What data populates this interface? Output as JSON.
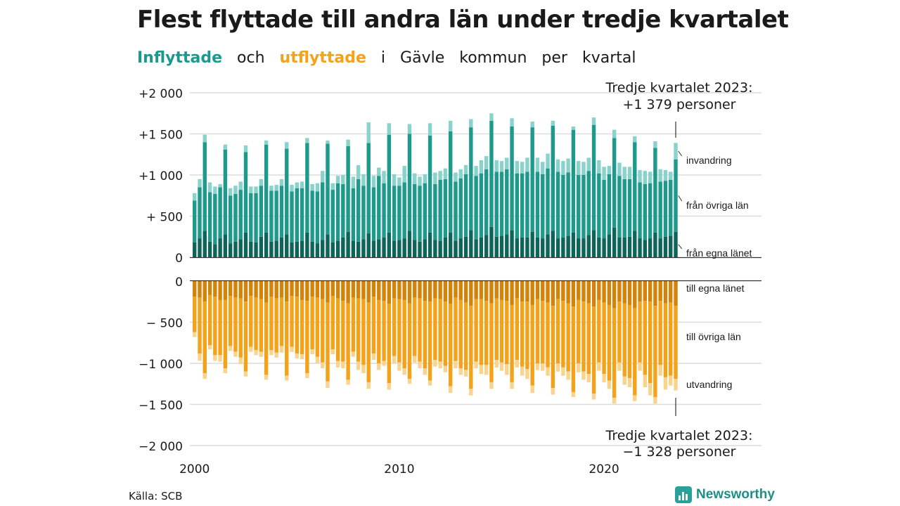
{
  "title": "Flest flyttade till andra län under tredje kvartalet",
  "subtitle": {
    "inflow": "Inflyttade",
    "and": "och",
    "outflow": "utflyttade",
    "in": "i",
    "place": "Gävle",
    "word_kommun": "kommun",
    "word_per": "per",
    "word_kvartal": "kvartal"
  },
  "source": "Källa: SCB",
  "brand": "Newsworthy",
  "chart_data": {
    "type": "bar",
    "stacked": true,
    "start_year": 2000,
    "quarters_per_year": 4,
    "periods": 95,
    "y_top": {
      "ylim": [
        0,
        2000
      ],
      "ticks": [
        0,
        500,
        1000,
        1500,
        2000
      ],
      "tick_labels": [
        "0",
        "+  500",
        "+1 000",
        "+1 500",
        "+2 000"
      ]
    },
    "y_bottom": {
      "ylim": [
        -2000,
        0
      ],
      "ticks": [
        0,
        -500,
        -1000,
        -1500,
        -2000
      ],
      "tick_labels": [
        "0",
        "−  500",
        "−1 000",
        "−1 500",
        "−2 000"
      ]
    },
    "x_ticks": [
      "2000",
      "2010",
      "2020"
    ],
    "inflow_series": [
      {
        "name": "från egna länet",
        "color": "#0f645a",
        "values": [
          180,
          230,
          320,
          190,
          160,
          230,
          280,
          170,
          190,
          220,
          300,
          190,
          180,
          250,
          300,
          190,
          200,
          240,
          280,
          180,
          190,
          200,
          300,
          190,
          170,
          210,
          280,
          180,
          200,
          240,
          310,
          200,
          190,
          220,
          290,
          200,
          220,
          240,
          300,
          200,
          210,
          230,
          320,
          210,
          190,
          220,
          300,
          210,
          200,
          240,
          300,
          200,
          230,
          250,
          330,
          220,
          240,
          270,
          370,
          250,
          260,
          280,
          330,
          230,
          240,
          240,
          310,
          240,
          230,
          280,
          320,
          230,
          240,
          260,
          300,
          230,
          230,
          270,
          330,
          240,
          230,
          280,
          360,
          240,
          240,
          250,
          320,
          230,
          210,
          230,
          300,
          230,
          250,
          260,
          310
        ]
      },
      {
        "name": "från övriga län",
        "color": "#1e9a8c",
        "values": [
          510,
          620,
          1080,
          600,
          610,
          620,
          1030,
          580,
          580,
          600,
          980,
          590,
          600,
          620,
          1070,
          620,
          610,
          630,
          1040,
          620,
          650,
          640,
          1090,
          620,
          630,
          700,
          1100,
          640,
          700,
          650,
          1040,
          640,
          760,
          650,
          1100,
          650,
          770,
          660,
          1190,
          670,
          660,
          680,
          1180,
          680,
          680,
          680,
          1180,
          680,
          740,
          710,
          1230,
          720,
          730,
          760,
          1250,
          770,
          780,
          800,
          1290,
          790,
          780,
          790,
          1260,
          790,
          780,
          800,
          1270,
          800,
          780,
          800,
          1280,
          810,
          760,
          770,
          1250,
          770,
          770,
          780,
          1280,
          780,
          710,
          730,
          1090,
          750,
          710,
          700,
          1080,
          680,
          680,
          670,
          1030,
          690,
          680,
          680,
          880
        ]
      },
      {
        "name": "invandring",
        "color": "#8ad3cc",
        "values": [
          90,
          100,
          90,
          120,
          90,
          40,
          60,
          90,
          100,
          100,
          80,
          80,
          80,
          80,
          50,
          60,
          70,
          80,
          80,
          80,
          70,
          80,
          60,
          80,
          100,
          140,
          40,
          80,
          90,
          110,
          80,
          140,
          170,
          140,
          250,
          140,
          100,
          150,
          140,
          140,
          100,
          200,
          120,
          130,
          110,
          110,
          150,
          140,
          110,
          130,
          130,
          110,
          110,
          110,
          100,
          120,
          160,
          160,
          90,
          140,
          130,
          140,
          100,
          150,
          140,
          170,
          70,
          170,
          150,
          180,
          60,
          150,
          170,
          170,
          40,
          170,
          160,
          160,
          90,
          160,
          160,
          100,
          100,
          160,
          150,
          150,
          70,
          150,
          160,
          140,
          80,
          150,
          130,
          100,
          200
        ]
      }
    ],
    "outflow_series": [
      {
        "name": "till egna länet",
        "color": "#d4830a",
        "values": [
          190,
          200,
          250,
          170,
          190,
          230,
          230,
          180,
          200,
          210,
          250,
          180,
          200,
          220,
          260,
          190,
          210,
          200,
          250,
          180,
          190,
          230,
          240,
          190,
          200,
          220,
          260,
          180,
          210,
          240,
          270,
          200,
          210,
          220,
          260,
          190,
          230,
          240,
          280,
          210,
          220,
          230,
          270,
          200,
          210,
          240,
          250,
          210,
          220,
          250,
          280,
          200,
          230,
          260,
          300,
          220,
          220,
          240,
          270,
          210,
          230,
          240,
          290,
          210,
          250,
          250,
          290,
          220,
          240,
          260,
          300,
          220,
          240,
          270,
          310,
          230,
          250,
          270,
          310,
          230,
          260,
          290,
          330,
          250,
          270,
          290,
          330,
          250,
          240,
          250,
          300,
          240,
          270,
          260,
          300
        ]
      },
      {
        "name": "till övriga län",
        "color": "#f5a21b",
        "values": [
          430,
          680,
          870,
          610,
          710,
          670,
          830,
          610,
          660,
          720,
          850,
          620,
          640,
          640,
          880,
          650,
          660,
          590,
          900,
          620,
          690,
          660,
          880,
          640,
          720,
          770,
          960,
          650,
          760,
          740,
          930,
          660,
          770,
          800,
          970,
          690,
          770,
          730,
          960,
          700,
          770,
          830,
          920,
          710,
          770,
          820,
          960,
          750,
          760,
          780,
          1000,
          770,
          830,
          820,
          1010,
          760,
          800,
          780,
          960,
          750,
          760,
          770,
          940,
          750,
          790,
          820,
          980,
          780,
          760,
          790,
          1000,
          780,
          810,
          830,
          1040,
          770,
          850,
          860,
          1060,
          760,
          870,
          920,
          1090,
          740,
          890,
          890,
          1060,
          740,
          900,
          990,
          1110,
          780,
          900,
          890,
          890
        ]
      },
      {
        "name": "utvandring",
        "color": "#f8d48e",
        "values": [
          60,
          90,
          70,
          50,
          70,
          80,
          60,
          60,
          60,
          80,
          60,
          60,
          60,
          60,
          60,
          60,
          60,
          80,
          60,
          60,
          60,
          60,
          60,
          60,
          80,
          70,
          80,
          60,
          80,
          80,
          60,
          60,
          100,
          100,
          80,
          80,
          80,
          60,
          80,
          90,
          100,
          80,
          60,
          80,
          80,
          80,
          60,
          80,
          80,
          80,
          80,
          90,
          80,
          80,
          80,
          80,
          110,
          120,
          80,
          90,
          100,
          130,
          80,
          90,
          110,
          120,
          90,
          80,
          90,
          100,
          80,
          100,
          100,
          100,
          60,
          110,
          100,
          100,
          70,
          100,
          100,
          100,
          70,
          100,
          100,
          110,
          70,
          100,
          150,
          150,
          80,
          130,
          150,
          120,
          140
        ]
      }
    ],
    "annotations": [
      {
        "line1": "Tredje kvartalet 2023:",
        "line2": "+1 379 personer"
      },
      {
        "line1": "Tredje kvartalet 2023:",
        "line2": "−1 328 personer"
      }
    ]
  }
}
